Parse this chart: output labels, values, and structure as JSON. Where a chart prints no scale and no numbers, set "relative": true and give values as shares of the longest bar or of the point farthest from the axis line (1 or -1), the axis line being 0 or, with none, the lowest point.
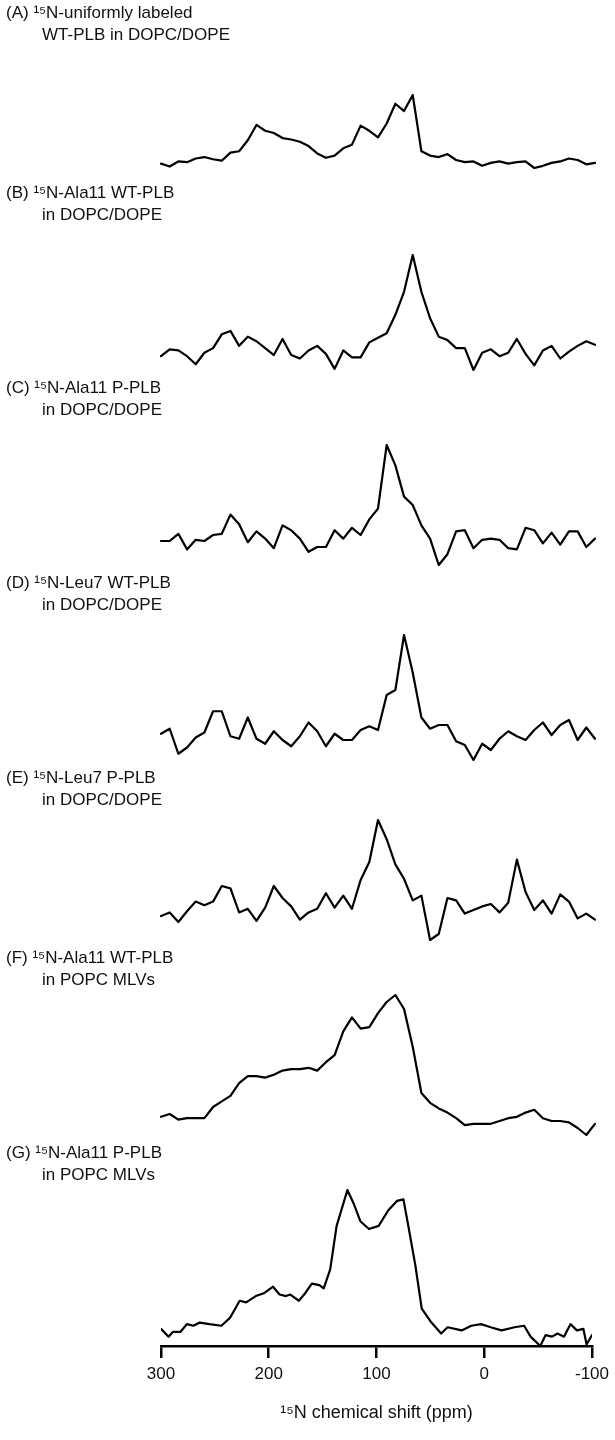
{
  "chart_data": [
    {
      "type": "line",
      "title": "(A) ¹⁵N-uniformly labeled\nWT-PLB in DOPC/DOPE",
      "relative": true,
      "color": "#000000",
      "tick_labels": false,
      "categories": [
        null,
        null,
        null,
        null,
        null,
        null,
        null,
        null,
        null,
        null,
        null,
        null,
        null,
        null,
        null,
        null,
        null,
        null,
        null,
        null,
        null,
        null,
        null,
        null,
        null,
        null,
        null,
        null,
        null,
        null,
        null,
        null,
        null,
        null,
        null,
        null,
        null,
        null,
        null,
        null,
        null,
        null,
        null,
        null,
        null,
        null,
        null,
        null,
        null,
        null,
        null
      ],
      "values": [
        0.06,
        0.02,
        0.09,
        0.08,
        0.13,
        0.15,
        0.12,
        0.1,
        0.21,
        0.23,
        0.38,
        0.59,
        0.51,
        0.48,
        0.41,
        0.39,
        0.36,
        0.3,
        0.2,
        0.14,
        0.17,
        0.27,
        0.32,
        0.58,
        0.51,
        0.42,
        0.61,
        0.88,
        0.78,
        1,
        0.23,
        0.17,
        0.15,
        0.19,
        0.11,
        0.08,
        0.09,
        0.03,
        0.07,
        0.09,
        0.06,
        0.08,
        0.09,
        0,
        0.03,
        0.07,
        0.09,
        0.13,
        0.11,
        0.05,
        0.07
      ]
    },
    {
      "type": "line",
      "title": "(B) ¹⁵N-Ala11 WT-PLB\nin DOPC/DOPE",
      "relative": true,
      "color": "#000000",
      "tick_labels": false,
      "categories": [
        null,
        null,
        null,
        null,
        null,
        null,
        null,
        null,
        null,
        null,
        null,
        null,
        null,
        null,
        null,
        null,
        null,
        null,
        null,
        null,
        null,
        null,
        null,
        null,
        null,
        null,
        null,
        null,
        null,
        null,
        null,
        null,
        null,
        null,
        null,
        null,
        null,
        null,
        null,
        null,
        null,
        null,
        null,
        null,
        null,
        null,
        null,
        null,
        null,
        null,
        null
      ],
      "values": [
        0.12,
        0.18,
        0.17,
        0.12,
        0.05,
        0.15,
        0.19,
        0.31,
        0.34,
        0.21,
        0.29,
        0.25,
        0.19,
        0.13,
        0.27,
        0.13,
        0.1,
        0.17,
        0.21,
        0.14,
        0.01,
        0.17,
        0.11,
        0.11,
        0.24,
        0.28,
        0.32,
        0.48,
        0.68,
        1,
        0.68,
        0.45,
        0.29,
        0.26,
        0.19,
        0.19,
        0,
        0.15,
        0.18,
        0.12,
        0.15,
        0.27,
        0.14,
        0.04,
        0.17,
        0.21,
        0.1,
        0.16,
        0.21,
        0.25,
        0.22
      ]
    },
    {
      "type": "line",
      "title": "(C) ¹⁵N-Ala11 P-PLB\nin DOPC/DOPE",
      "relative": true,
      "color": "#000000",
      "tick_labels": false,
      "categories": [
        null,
        null,
        null,
        null,
        null,
        null,
        null,
        null,
        null,
        null,
        null,
        null,
        null,
        null,
        null,
        null,
        null,
        null,
        null,
        null,
        null,
        null,
        null,
        null,
        null,
        null,
        null,
        null,
        null,
        null,
        null,
        null,
        null,
        null,
        null,
        null,
        null,
        null,
        null,
        null,
        null,
        null,
        null,
        null,
        null,
        null,
        null,
        null,
        null,
        null,
        null
      ],
      "values": [
        0.2,
        0.2,
        0.26,
        0.13,
        0.21,
        0.2,
        0.25,
        0.26,
        0.42,
        0.34,
        0.19,
        0.28,
        0.22,
        0.14,
        0.33,
        0.29,
        0.22,
        0.11,
        0.15,
        0.15,
        0.29,
        0.22,
        0.31,
        0.25,
        0.38,
        0.47,
        1,
        0.83,
        0.57,
        0.5,
        0.33,
        0.22,
        0,
        0.09,
        0.28,
        0.29,
        0.14,
        0.21,
        0.22,
        0.21,
        0.14,
        0.13,
        0.31,
        0.29,
        0.18,
        0.27,
        0.17,
        0.28,
        0.28,
        0.15,
        0.22
      ]
    },
    {
      "type": "line",
      "title": "(D) ¹⁵N-Leu7 WT-PLB\nin DOPC/DOPE",
      "relative": true,
      "color": "#000000",
      "tick_labels": false,
      "categories": [
        null,
        null,
        null,
        null,
        null,
        null,
        null,
        null,
        null,
        null,
        null,
        null,
        null,
        null,
        null,
        null,
        null,
        null,
        null,
        null,
        null,
        null,
        null,
        null,
        null,
        null,
        null,
        null,
        null,
        null,
        null,
        null,
        null,
        null,
        null,
        null,
        null,
        null,
        null,
        null,
        null,
        null,
        null,
        null,
        null,
        null,
        null,
        null,
        null,
        null,
        null
      ],
      "values": [
        0.21,
        0.25,
        0.05,
        0.1,
        0.18,
        0.22,
        0.39,
        0.39,
        0.19,
        0.17,
        0.34,
        0.17,
        0.13,
        0.23,
        0.16,
        0.11,
        0.19,
        0.3,
        0.23,
        0.11,
        0.21,
        0.16,
        0.16,
        0.24,
        0.27,
        0.24,
        0.52,
        0.56,
        1,
        0.7,
        0.34,
        0.25,
        0.28,
        0.28,
        0.15,
        0.12,
        0,
        0.13,
        0.08,
        0.17,
        0.23,
        0.19,
        0.16,
        0.24,
        0.3,
        0.2,
        0.28,
        0.32,
        0.16,
        0.26,
        0.17
      ]
    },
    {
      "type": "line",
      "title": "(E) ¹⁵N-Leu7 P-PLB\nin DOPC/DOPE",
      "relative": true,
      "color": "#000000",
      "tick_labels": false,
      "categories": [
        null,
        null,
        null,
        null,
        null,
        null,
        null,
        null,
        null,
        null,
        null,
        null,
        null,
        null,
        null,
        null,
        null,
        null,
        null,
        null,
        null,
        null,
        null,
        null,
        null,
        null,
        null,
        null,
        null,
        null,
        null,
        null,
        null,
        null,
        null,
        null,
        null,
        null,
        null,
        null,
        null,
        null,
        null,
        null,
        null,
        null,
        null,
        null,
        null,
        null,
        null
      ],
      "values": [
        0.2,
        0.23,
        0.15,
        0.24,
        0.32,
        0.29,
        0.32,
        0.45,
        0.43,
        0.23,
        0.26,
        0.16,
        0.27,
        0.45,
        0.35,
        0.28,
        0.17,
        0.23,
        0.26,
        0.39,
        0.27,
        0.37,
        0.26,
        0.5,
        0.65,
        1,
        0.84,
        0.63,
        0.51,
        0.33,
        0.37,
        0,
        0.05,
        0.35,
        0.33,
        0.22,
        0.25,
        0.28,
        0.3,
        0.23,
        0.31,
        0.67,
        0.4,
        0.25,
        0.33,
        0.22,
        0.38,
        0.32,
        0.18,
        0.22,
        0.17
      ]
    },
    {
      "type": "line",
      "title": "(F) ¹⁵N-Ala11 WT-PLB\nin POPC MLVs",
      "relative": true,
      "color": "#000000",
      "tick_labels": false,
      "categories": [
        null,
        null,
        null,
        null,
        null,
        null,
        null,
        null,
        null,
        null,
        null,
        null,
        null,
        null,
        null,
        null,
        null,
        null,
        null,
        null,
        null,
        null,
        null,
        null,
        null,
        null,
        null,
        null,
        null,
        null,
        null,
        null,
        null,
        null,
        null,
        null,
        null,
        null,
        null,
        null,
        null,
        null,
        null,
        null,
        null,
        null,
        null,
        null,
        null,
        null,
        null
      ],
      "values": [
        0.13,
        0.15,
        0.11,
        0.12,
        0.12,
        0.12,
        0.2,
        0.24,
        0.28,
        0.37,
        0.42,
        0.42,
        0.41,
        0.43,
        0.46,
        0.47,
        0.47,
        0.48,
        0.46,
        0.52,
        0.57,
        0.74,
        0.84,
        0.76,
        0.77,
        0.87,
        0.95,
        1,
        0.9,
        0.63,
        0.3,
        0.23,
        0.19,
        0.16,
        0.12,
        0.07,
        0.08,
        0.08,
        0.08,
        0.1,
        0.12,
        0.13,
        0.16,
        0.18,
        0.12,
        0.1,
        0.1,
        0.09,
        0.05,
        0,
        0.08
      ]
    },
    {
      "type": "line",
      "title": "(G) ¹⁵N-Ala11 P-PLB\nin POPC MLVs",
      "relative": true,
      "color": "#000000",
      "xlim": [
        300,
        -100
      ],
      "xticks": [
        300,
        200,
        100,
        0,
        -100
      ],
      "xlabel": "¹⁵N chemical shift (ppm)",
      "x": [
        300,
        293,
        289,
        282,
        276,
        270,
        264,
        255,
        244,
        236,
        227,
        221,
        212,
        204,
        196,
        190,
        184,
        180,
        172,
        166,
        160,
        153,
        149,
        143,
        137,
        127,
        121,
        115,
        107,
        98,
        89,
        81,
        75,
        71,
        64,
        58,
        49,
        40,
        34,
        21,
        12,
        3,
        -6,
        -16,
        -28,
        -37,
        -43,
        -52,
        -57,
        -63,
        -68,
        -74,
        -80,
        -86,
        -92,
        -95,
        -100
      ],
      "values": [
        0.11,
        0.06,
        0.09,
        0.09,
        0.14,
        0.13,
        0.15,
        0.14,
        0.13,
        0.18,
        0.29,
        0.28,
        0.32,
        0.34,
        0.38,
        0.33,
        0.32,
        0.33,
        0.29,
        0.34,
        0.4,
        0.39,
        0.37,
        0.49,
        0.77,
        1,
        0.91,
        0.8,
        0.75,
        0.77,
        0.87,
        0.93,
        0.94,
        0.79,
        0.52,
        0.24,
        0.15,
        0.08,
        0.12,
        0.1,
        0.13,
        0.14,
        0.12,
        0.1,
        0.12,
        0.13,
        0.06,
        0,
        0.07,
        0.06,
        0.08,
        0.06,
        0.14,
        0.1,
        0.11,
        0.01,
        0.07
      ]
    }
  ]
}
